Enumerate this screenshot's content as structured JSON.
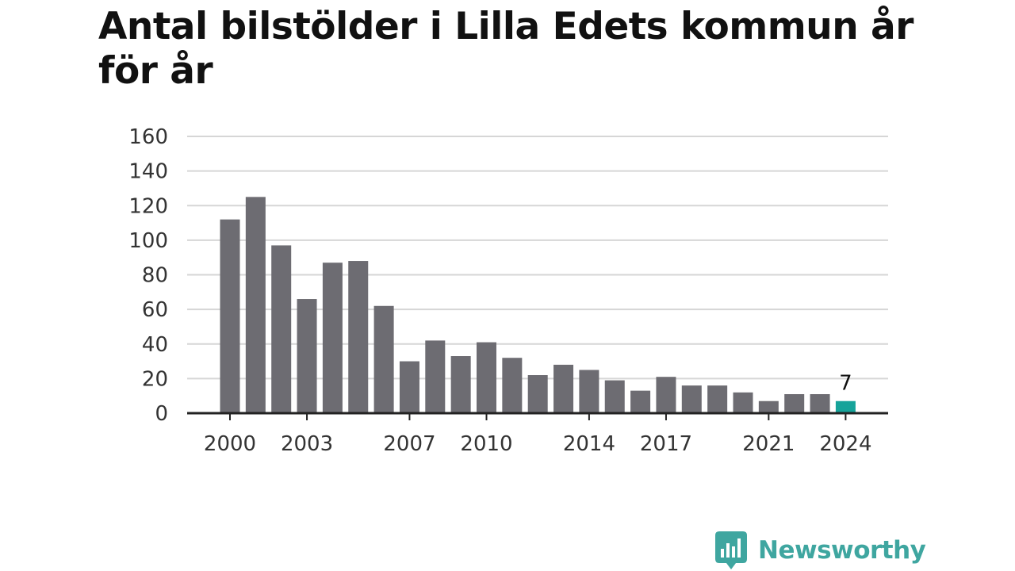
{
  "title": "Antal bilstölder i Lilla Edets kommun år för år",
  "brand": {
    "name": "Newsworthy",
    "color": "#3fa6a0"
  },
  "colors": {
    "bar": "#6d6c72",
    "highlight": "#16a39a",
    "grid": "#d6d6d6",
    "axis": "#222222"
  },
  "chart_data": {
    "type": "bar",
    "categories": [
      "2000",
      "2001",
      "2002",
      "2003",
      "2004",
      "2005",
      "2006",
      "2007",
      "2008",
      "2009",
      "2010",
      "2011",
      "2012",
      "2013",
      "2014",
      "2015",
      "2016",
      "2017",
      "2018",
      "2019",
      "2020",
      "2021",
      "2022",
      "2023",
      "2024"
    ],
    "values": [
      112,
      125,
      97,
      66,
      87,
      88,
      62,
      30,
      42,
      33,
      41,
      32,
      22,
      28,
      25,
      19,
      13,
      21,
      16,
      16,
      12,
      7,
      11,
      11,
      7
    ],
    "x_tick_labels": [
      "2000",
      "2003",
      "2007",
      "2010",
      "2014",
      "2017",
      "2021",
      "2024"
    ],
    "y_ticks": [
      0,
      20,
      40,
      60,
      80,
      100,
      120,
      140,
      160
    ],
    "ylim": [
      0,
      160
    ],
    "highlight_category": "2024",
    "data_labels": [
      {
        "category": "2024",
        "text": "7"
      }
    ],
    "grid": true,
    "title": "Antal bilstölder i Lilla Edets kommun år för år",
    "xlabel": "",
    "ylabel": ""
  }
}
